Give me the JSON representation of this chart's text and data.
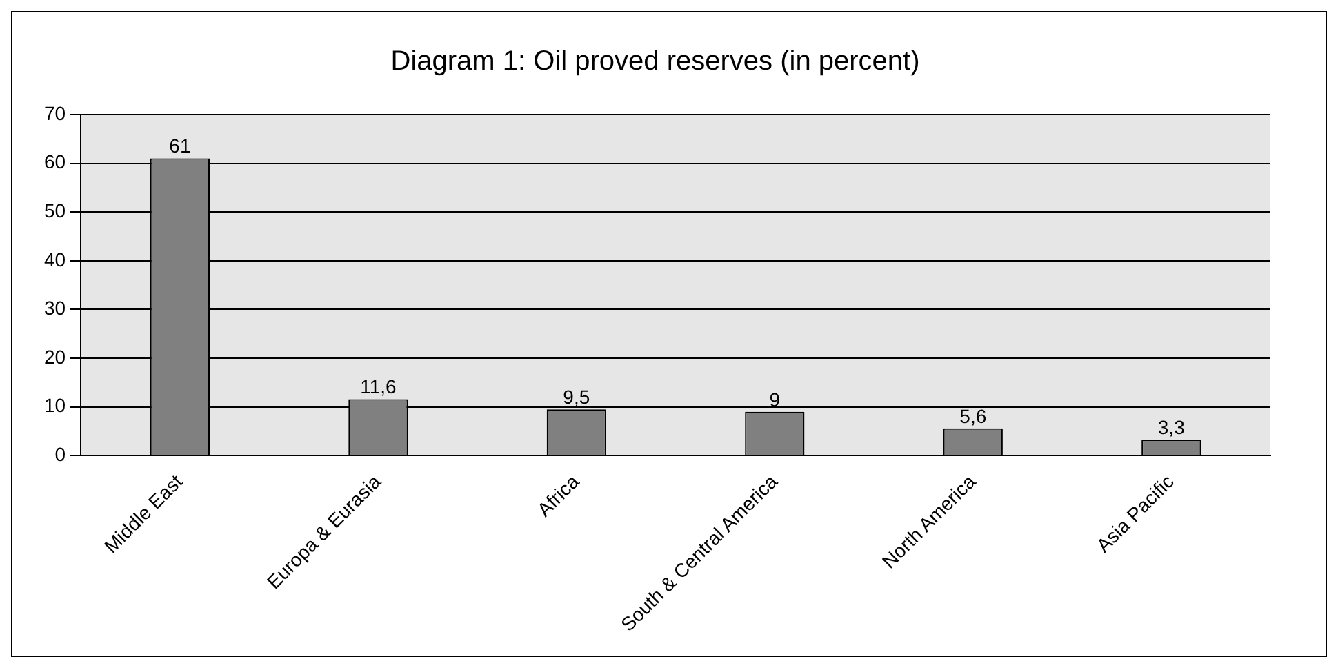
{
  "chart_data": {
    "type": "bar",
    "title": "Diagram 1: Oil proved reserves (in percent)",
    "categories": [
      "Middle East",
      "Europa & Eurasia",
      "Africa",
      "South & Central America",
      "North America",
      "Asia Pacific"
    ],
    "values": [
      61,
      11.6,
      9.5,
      9,
      5.6,
      3.3
    ],
    "value_labels": [
      "61",
      "11,6",
      "9,5",
      "9",
      "5,6",
      "3,3"
    ],
    "color": "#808080",
    "ylim": [
      0,
      70
    ],
    "yticks": [
      0,
      10,
      20,
      30,
      40,
      50,
      60,
      70
    ],
    "grid": "y",
    "legend": false
  }
}
